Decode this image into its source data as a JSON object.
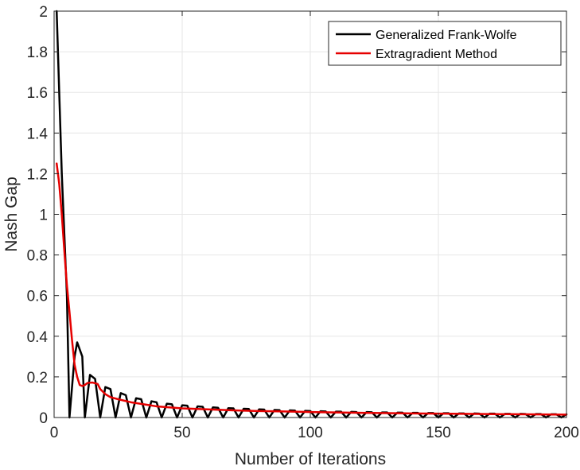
{
  "chart_data": {
    "type": "line",
    "title": "",
    "xlabel": "Number of Iterations",
    "ylabel": "Nash Gap",
    "xlim": [
      0,
      200
    ],
    "ylim": [
      0,
      2
    ],
    "xticks": [
      "0",
      "50",
      "100",
      "150",
      "200"
    ],
    "yticks": [
      "0",
      "0.2",
      "0.4",
      "0.6",
      "0.8",
      "1",
      "1.2",
      "1.4",
      "1.6",
      "1.8",
      "2"
    ],
    "grid": true,
    "legend_position": "top-right",
    "series": [
      {
        "name": "Generalized Frank-Wolfe",
        "color": "#000000",
        "points": [
          [
            1,
            2.0
          ],
          [
            3,
            1.2
          ],
          [
            5,
            0.6
          ],
          [
            6,
            0.0
          ],
          [
            8,
            0.3
          ],
          [
            9,
            0.37
          ],
          [
            11,
            0.3
          ],
          [
            12,
            0.0
          ],
          [
            14,
            0.21
          ],
          [
            16,
            0.19
          ],
          [
            18,
            0.0
          ],
          [
            20,
            0.15
          ],
          [
            22,
            0.14
          ],
          [
            24,
            0.0
          ],
          [
            26,
            0.12
          ],
          [
            28,
            0.11
          ],
          [
            30,
            0.0
          ],
          [
            32,
            0.095
          ],
          [
            34,
            0.09
          ],
          [
            36,
            0.0
          ],
          [
            38,
            0.08
          ],
          [
            40,
            0.075
          ],
          [
            42,
            0.0
          ],
          [
            44,
            0.068
          ],
          [
            46,
            0.065
          ],
          [
            48,
            0.0
          ],
          [
            50,
            0.06
          ],
          [
            52,
            0.058
          ],
          [
            54,
            0.0
          ],
          [
            56,
            0.055
          ],
          [
            58,
            0.053
          ],
          [
            60,
            0.0
          ],
          [
            62,
            0.05
          ],
          [
            64,
            0.048
          ],
          [
            66,
            0.0
          ],
          [
            68,
            0.046
          ],
          [
            70,
            0.045
          ],
          [
            72,
            0.0
          ],
          [
            74,
            0.043
          ],
          [
            76,
            0.042
          ],
          [
            78,
            0.0
          ],
          [
            80,
            0.04
          ],
          [
            82,
            0.039
          ],
          [
            84,
            0.0
          ],
          [
            86,
            0.037
          ],
          [
            88,
            0.036
          ],
          [
            90,
            0.0
          ],
          [
            92,
            0.035
          ],
          [
            94,
            0.034
          ],
          [
            96,
            0.0
          ],
          [
            98,
            0.033
          ],
          [
            100,
            0.032
          ],
          [
            102,
            0.0
          ],
          [
            104,
            0.031
          ],
          [
            106,
            0.03
          ],
          [
            108,
            0.0
          ],
          [
            110,
            0.029
          ],
          [
            112,
            0.029
          ],
          [
            114,
            0.0
          ],
          [
            116,
            0.028
          ],
          [
            118,
            0.027
          ],
          [
            120,
            0.0
          ],
          [
            122,
            0.027
          ],
          [
            124,
            0.026
          ],
          [
            126,
            0.0
          ],
          [
            128,
            0.025
          ],
          [
            130,
            0.025
          ],
          [
            132,
            0.0
          ],
          [
            134,
            0.024
          ],
          [
            136,
            0.024
          ],
          [
            138,
            0.0
          ],
          [
            140,
            0.023
          ],
          [
            142,
            0.023
          ],
          [
            144,
            0.0
          ],
          [
            146,
            0.022
          ],
          [
            148,
            0.022
          ],
          [
            150,
            0.0
          ],
          [
            152,
            0.021
          ],
          [
            154,
            0.021
          ],
          [
            156,
            0.0
          ],
          [
            158,
            0.02
          ],
          [
            160,
            0.02
          ],
          [
            162,
            0.0
          ],
          [
            164,
            0.02
          ],
          [
            166,
            0.019
          ],
          [
            168,
            0.0
          ],
          [
            170,
            0.019
          ],
          [
            172,
            0.019
          ],
          [
            174,
            0.0
          ],
          [
            176,
            0.018
          ],
          [
            178,
            0.018
          ],
          [
            180,
            0.0
          ],
          [
            182,
            0.018
          ],
          [
            184,
            0.017
          ],
          [
            186,
            0.0
          ],
          [
            188,
            0.017
          ],
          [
            190,
            0.017
          ],
          [
            192,
            0.0
          ],
          [
            194,
            0.016
          ],
          [
            196,
            0.016
          ],
          [
            198,
            0.0
          ],
          [
            200,
            0.016
          ]
        ]
      },
      {
        "name": "Extragradient Method",
        "color": "#e60000",
        "points": [
          [
            1,
            1.25
          ],
          [
            2,
            1.15
          ],
          [
            3,
            1.0
          ],
          [
            4,
            0.82
          ],
          [
            5,
            0.65
          ],
          [
            6,
            0.52
          ],
          [
            7,
            0.38
          ],
          [
            8,
            0.26
          ],
          [
            9,
            0.2
          ],
          [
            10,
            0.16
          ],
          [
            11,
            0.155
          ],
          [
            12,
            0.16
          ],
          [
            13,
            0.17
          ],
          [
            15,
            0.172
          ],
          [
            17,
            0.165
          ],
          [
            18,
            0.14
          ],
          [
            20,
            0.115
          ],
          [
            22,
            0.1
          ],
          [
            25,
            0.09
          ],
          [
            30,
            0.075
          ],
          [
            35,
            0.065
          ],
          [
            40,
            0.055
          ],
          [
            50,
            0.045
          ],
          [
            60,
            0.04
          ],
          [
            70,
            0.035
          ],
          [
            80,
            0.032
          ],
          [
            90,
            0.03
          ],
          [
            100,
            0.027
          ],
          [
            120,
            0.023
          ],
          [
            140,
            0.02
          ],
          [
            160,
            0.018
          ],
          [
            180,
            0.016
          ],
          [
            200,
            0.014
          ]
        ]
      }
    ]
  }
}
